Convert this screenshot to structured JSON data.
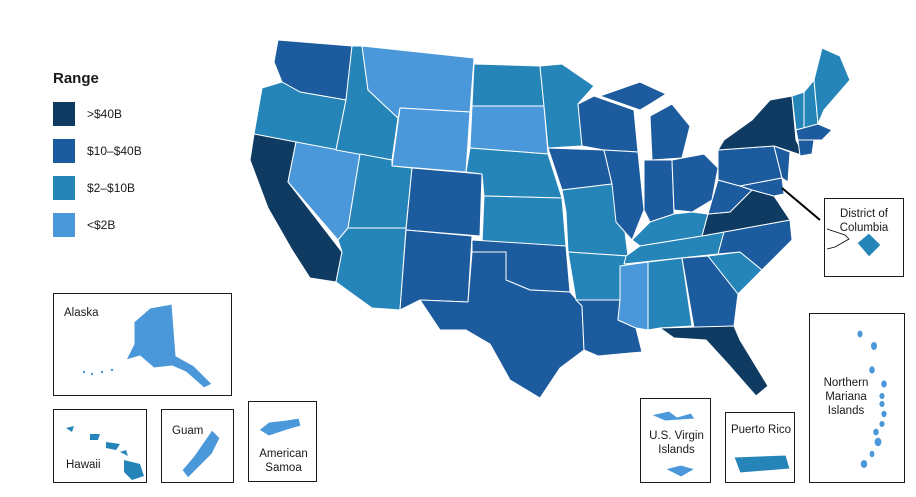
{
  "legend": {
    "title": "Range",
    "items": [
      {
        "label": ">$40B",
        "color": "#0f3b63"
      },
      {
        "label": "$10–$40B",
        "color": "#1c5b9e"
      },
      {
        "label": "$2–$10B",
        "color": "#2585b8"
      },
      {
        "label": "<$2B",
        "color": "#4a98d9"
      }
    ]
  },
  "insets": {
    "alaska": "Alaska",
    "hawaii": "Hawaii",
    "guam": "Guam",
    "american_samoa": "American Samoa",
    "usvi": "U.S. Virgin Islands",
    "puerto_rico": "Puerto Rico",
    "cnmi": "Northern Mariana Islands",
    "dc": "District of Columbia"
  },
  "map_data": {
    "type": "choropleth",
    "categories": [
      ">$40B",
      "$10–$40B",
      "$2–$10B",
      "<$2B"
    ],
    "regions": {
      "California": ">$40B",
      "New York": ">$40B",
      "Florida": ">$40B",
      "Virginia": ">$40B",
      "Washington": "$10–$40B",
      "Colorado": "$10–$40B",
      "New Mexico": "$10–$40B",
      "Texas": "$10–$40B",
      "Louisiana": "$10–$40B",
      "Georgia": "$10–$40B",
      "North Carolina": "$10–$40B",
      "Illinois": "$10–$40B",
      "Wisconsin": "$10–$40B",
      "Michigan": "$10–$40B",
      "Iowa": "$10–$40B",
      "Ohio": "$10–$40B",
      "Indiana": "$10–$40B",
      "Pennsylvania": "$10–$40B",
      "Massachusetts": "$10–$40B",
      "Maryland": "$10–$40B",
      "New Jersey": "$10–$40B",
      "Oklahoma": "$10–$40B",
      "West Virginia": "$10–$40B",
      "Connecticut": "$10–$40B",
      "Oregon": "$2–$10B",
      "Idaho": "$2–$10B",
      "Utah": "$2–$10B",
      "Arizona": "$2–$10B",
      "North Dakota": "$2–$10B",
      "Minnesota": "$2–$10B",
      "Nebraska": "$2–$10B",
      "Kansas": "$2–$10B",
      "Missouri": "$2–$10B",
      "Arkansas": "$2–$10B",
      "Kentucky": "$2–$10B",
      "Tennessee": "$2–$10B",
      "Alabama": "$2–$10B",
      "South Carolina": "$2–$10B",
      "Maine": "$2–$10B",
      "Vermont": "$2–$10B",
      "New Hampshire": "$2–$10B",
      "District of Columbia": "$2–$10B",
      "Hawaii": "$2–$10B",
      "Montana": "<$2B",
      "Wyoming": "<$2B",
      "South Dakota": "<$2B",
      "Nevada": "<$2B",
      "Mississippi": "<$2B",
      "Alaska": "<$2B",
      "Guam": "<$2B",
      "American Samoa": "<$2B",
      "U.S. Virgin Islands": "<$2B",
      "Puerto Rico": "$2–$10B",
      "Northern Mariana Islands": "<$2B"
    }
  }
}
